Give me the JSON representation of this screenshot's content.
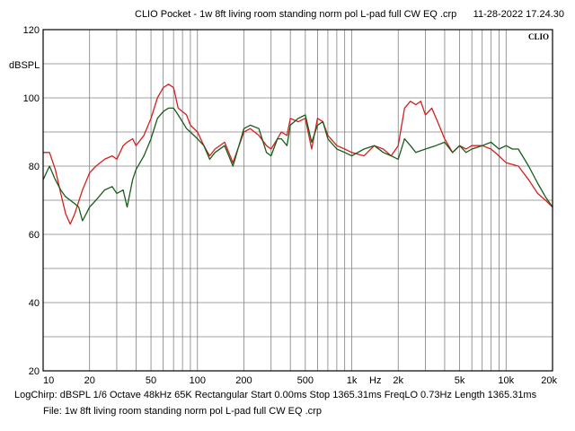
{
  "header": {
    "title": "CLIO Pocket - 1w 8ft living room standing norm pol L-pad full CW EQ .crp",
    "timestamp": "11-28-2022 17.24.30",
    "brand": "CLIO"
  },
  "footer": {
    "status": "LogChirp:  dBSPL   1/6 Octave   48kHz   65K   Rectangular   Start 0.00ms   Stop 1365.31ms   FreqLO 0.73Hz   Length 1365.31ms",
    "file": "File: 1w 8ft living room standing norm pol L-pad full CW EQ .crp"
  },
  "colors": {
    "background": "#ffffff",
    "grid": "#808080",
    "red": "#d42020",
    "green": "#1a5c1a"
  },
  "chart_data": {
    "type": "line",
    "xscale": "log",
    "xlim": [
      10,
      20000
    ],
    "ylim": [
      20,
      120
    ],
    "ylabel": "dBSPL",
    "xlabel": "Hz",
    "grid": true,
    "x_tick_labels": [
      {
        "v": 10,
        "t": "10"
      },
      {
        "v": 20,
        "t": "20"
      },
      {
        "v": 50,
        "t": "50"
      },
      {
        "v": 100,
        "t": "100"
      },
      {
        "v": 200,
        "t": "200"
      },
      {
        "v": 500,
        "t": "500"
      },
      {
        "v": 1000,
        "t": "1k"
      },
      {
        "v": 2000,
        "t": "2k"
      },
      {
        "v": 5000,
        "t": "5k"
      },
      {
        "v": 10000,
        "t": "10k"
      },
      {
        "v": 20000,
        "t": "20k"
      }
    ],
    "y_ticks": [
      20,
      40,
      60,
      80,
      100,
      120
    ],
    "series": [
      {
        "color": "#d42020",
        "x": [
          10,
          11,
          12,
          13,
          14,
          15,
          16,
          18,
          20,
          22,
          25,
          28,
          30,
          33,
          35,
          38,
          40,
          45,
          50,
          55,
          60,
          65,
          70,
          75,
          80,
          85,
          90,
          100,
          110,
          120,
          130,
          150,
          170,
          200,
          220,
          250,
          280,
          300,
          330,
          350,
          380,
          400,
          450,
          500,
          550,
          600,
          650,
          700,
          800,
          900,
          1000,
          1200,
          1400,
          1600,
          1800,
          2000,
          2200,
          2400,
          2600,
          2800,
          3000,
          3300,
          3600,
          4000,
          4500,
          5000,
          5500,
          6000,
          7000,
          8000,
          9000,
          10000,
          12000,
          14000,
          16000,
          18000,
          20000
        ],
        "y": [
          84,
          84,
          79,
          72,
          66,
          63,
          66,
          73,
          78,
          80,
          82,
          83,
          82,
          86,
          87,
          88,
          86,
          89,
          94,
          100,
          103,
          104,
          103,
          97,
          96,
          95,
          92,
          90,
          86,
          83,
          85,
          87,
          81,
          90,
          91,
          89,
          86,
          85,
          88,
          90,
          89,
          94,
          93,
          94,
          85,
          94,
          93,
          89,
          86,
          85,
          84,
          83,
          86,
          85,
          83,
          86,
          97,
          99,
          98,
          99,
          95,
          97,
          93,
          88,
          84,
          86,
          85,
          86,
          86,
          85,
          83,
          81,
          80,
          76,
          72,
          70,
          68
        ]
      },
      {
        "color": "#1a5c1a",
        "x": [
          10,
          11,
          12,
          13,
          14,
          15,
          16,
          17,
          18,
          19,
          20,
          22,
          25,
          28,
          30,
          33,
          35,
          38,
          40,
          45,
          50,
          55,
          60,
          65,
          70,
          75,
          80,
          85,
          90,
          100,
          110,
          120,
          130,
          150,
          170,
          200,
          220,
          250,
          280,
          300,
          330,
          350,
          380,
          400,
          450,
          500,
          550,
          600,
          650,
          700,
          800,
          900,
          1000,
          1200,
          1400,
          1600,
          1800,
          2000,
          2200,
          2400,
          2600,
          3000,
          3500,
          4000,
          4500,
          5000,
          5500,
          6000,
          7000,
          8000,
          9000,
          10000,
          11000,
          12000,
          14000,
          16000,
          18000,
          20000
        ],
        "y": [
          76,
          80,
          76,
          73,
          71,
          70,
          69,
          68,
          64,
          66,
          68,
          70,
          73,
          74,
          72,
          73,
          68,
          76,
          79,
          83,
          88,
          94,
          96,
          97,
          97,
          95,
          93,
          91,
          90,
          88,
          86,
          82,
          84,
          86,
          80,
          91,
          92,
          91,
          84,
          83,
          88,
          88,
          86,
          92,
          94,
          95,
          87,
          92,
          93,
          88,
          85,
          84,
          83,
          85,
          86,
          84,
          83,
          82,
          88,
          86,
          84,
          85,
          86,
          87,
          84,
          86,
          84,
          85,
          86,
          87,
          85,
          86,
          85,
          85,
          80,
          75,
          71,
          68
        ]
      }
    ]
  }
}
